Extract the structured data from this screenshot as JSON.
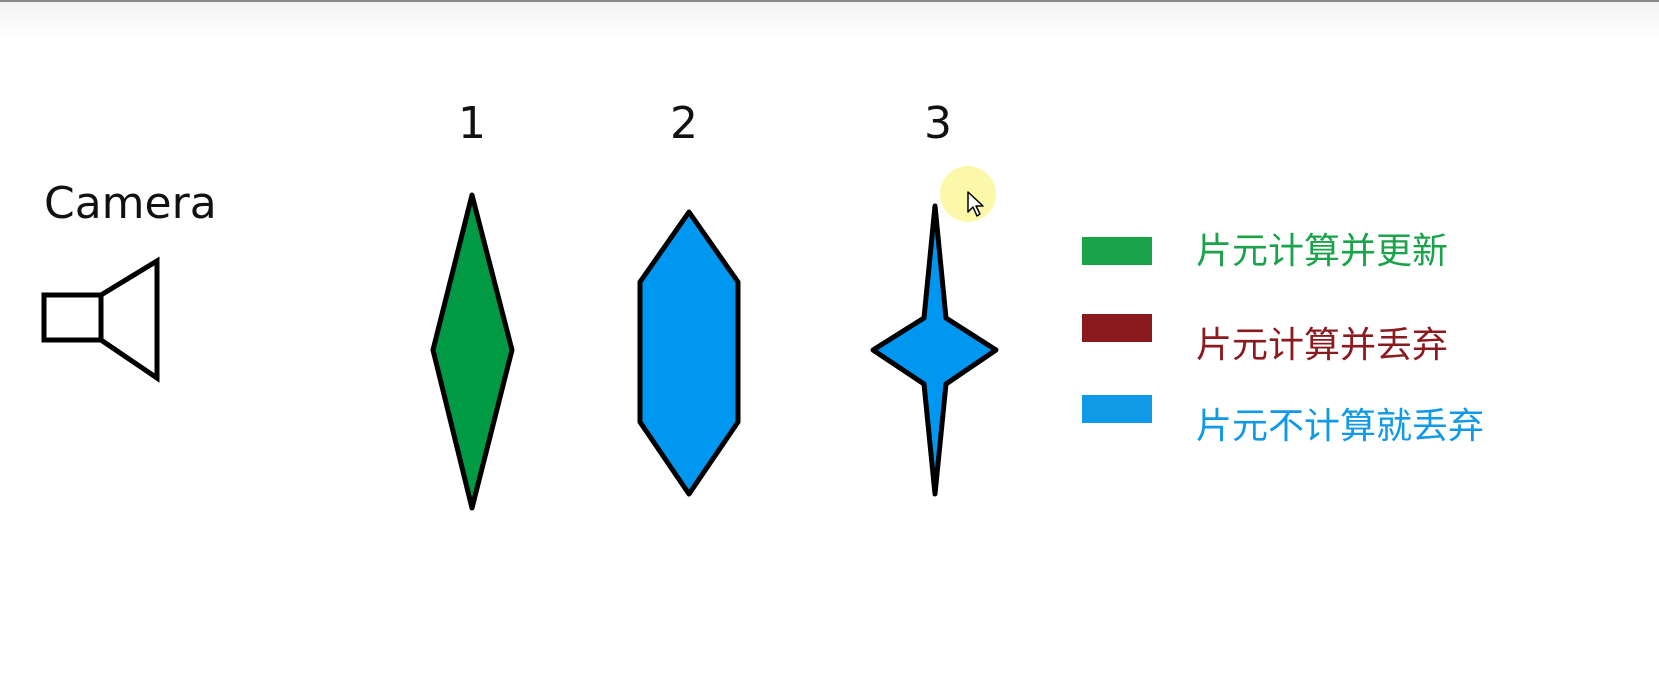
{
  "camera": {
    "label": "Camera",
    "icon": "camera-icon"
  },
  "objects": [
    {
      "number": "1",
      "shape": "diamond",
      "color": "#009a44"
    },
    {
      "number": "2",
      "shape": "hexagon",
      "color": "#0097f0"
    },
    {
      "number": "3",
      "shape": "star",
      "color": "#0097f0"
    }
  ],
  "legend": [
    {
      "text": "片元计算并更新",
      "color": "#1aa34a"
    },
    {
      "text": "片元计算并丢弃",
      "color": "#8b1a1f"
    },
    {
      "text": "片元不计算就丢弃",
      "color": "#1099e6"
    }
  ],
  "cursor": {
    "icon": "mouse-pointer-icon"
  }
}
